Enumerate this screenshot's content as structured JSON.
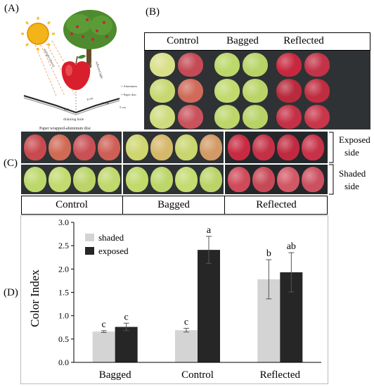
{
  "panels": {
    "a": "(A)",
    "b": "(B)",
    "c": "(C)",
    "d": "(D)"
  },
  "diagram": {
    "caption": "Paper wrapped-aluminum disc",
    "drain": "draining hole",
    "aluminum": "= Aluminum",
    "paper": "= Paper disc",
    "sunlight": "sunlight (direct)",
    "reflected": "reflected light",
    "angle": "140°",
    "dim1": "14 cm",
    "dim2": "8 cm",
    "dim3": "5 cm"
  },
  "panel_b": {
    "headers": [
      "Control",
      "Bagged",
      "Reflected"
    ]
  },
  "panel_c": {
    "side_labels": [
      [
        "Exposed",
        "side"
      ],
      [
        "Shaded",
        "side"
      ]
    ],
    "groups": [
      "Control",
      "Bagged",
      "Reflected"
    ]
  },
  "colors": {
    "shaded": "#d4d4d4",
    "exposed": "#262626",
    "green_apple": "#b9d36a",
    "red_apple": "#c8324b",
    "photo_bg": "#2e3234"
  },
  "chart_data": {
    "type": "bar",
    "ylabel": "Color Index",
    "xlabel": "",
    "categories": [
      "Bagged",
      "Control",
      "Reflected"
    ],
    "ylim": [
      0,
      3.0
    ],
    "yticks": [
      0.0,
      0.5,
      1.0,
      1.5,
      2.0,
      2.5,
      3.0
    ],
    "ytick_labels": [
      "0.0",
      "0.5",
      "1.0",
      "1.5",
      "2.0",
      "2.5",
      "3.0"
    ],
    "legend_position": "top-left",
    "grid": false,
    "series": [
      {
        "name": "shaded",
        "values": [
          0.66,
          0.69,
          1.78
        ],
        "errors": [
          0.02,
          0.04,
          0.42
        ],
        "letters": [
          "c",
          "c",
          "b"
        ]
      },
      {
        "name": "exposed",
        "values": [
          0.76,
          2.41,
          1.93
        ],
        "errors": [
          0.08,
          0.29,
          0.42
        ],
        "letters": [
          "c",
          "a",
          "ab"
        ]
      }
    ]
  }
}
